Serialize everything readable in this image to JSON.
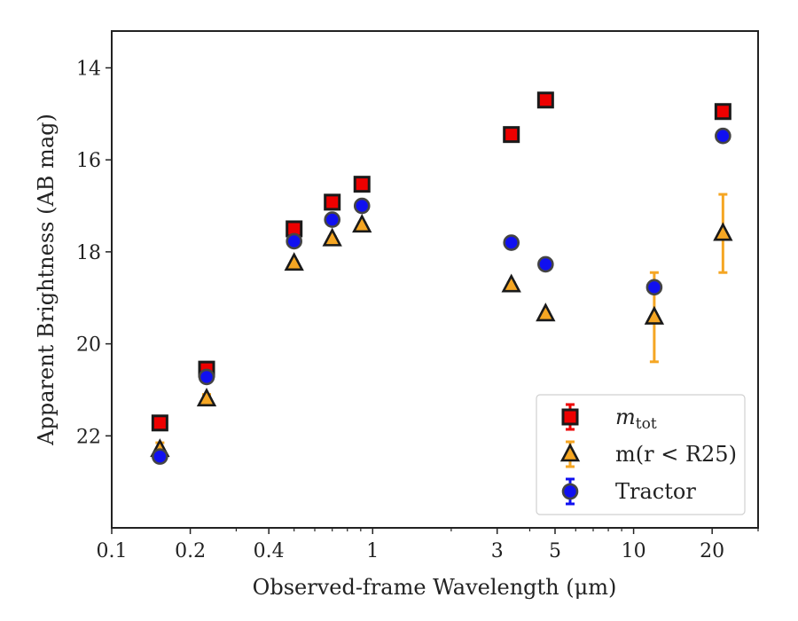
{
  "chart_data": {
    "type": "scatter",
    "xlabel": "Observed-frame Wavelength (μm)",
    "ylabel": "Apparent Brightness (AB mag)",
    "x_scale": "log",
    "xlim": [
      0.1,
      30
    ],
    "ylim": [
      24,
      13.2
    ],
    "y_inverted": true,
    "grid": false,
    "legend_position": "bottom-right",
    "x_ticks": [
      {
        "value": 0.1,
        "label": "0.1"
      },
      {
        "value": 0.2,
        "label": "0.2"
      },
      {
        "value": 0.4,
        "label": "0.4"
      },
      {
        "value": 1,
        "label": "1"
      },
      {
        "value": 3,
        "label": "3"
      },
      {
        "value": 5,
        "label": "5"
      },
      {
        "value": 10,
        "label": "10"
      },
      {
        "value": 20,
        "label": "20"
      }
    ],
    "y_ticks": [
      {
        "value": 14,
        "label": "14"
      },
      {
        "value": 16,
        "label": "16"
      },
      {
        "value": 18,
        "label": "18"
      },
      {
        "value": 20,
        "label": "20"
      },
      {
        "value": 22,
        "label": "22"
      }
    ],
    "series": [
      {
        "name": "m_tot",
        "legend_main": "m",
        "legend_sub": "tot",
        "marker": "square",
        "color": "#ee0000",
        "error_color": "#ee0000",
        "points": [
          {
            "x": 0.153,
            "y": 21.72,
            "err": 0.05
          },
          {
            "x": 0.231,
            "y": 20.55,
            "err": 0.05
          },
          {
            "x": 0.5,
            "y": 17.5,
            "err": 0.05
          },
          {
            "x": 0.7,
            "y": 16.92,
            "err": 0.05
          },
          {
            "x": 0.91,
            "y": 16.53,
            "err": 0.05
          },
          {
            "x": 3.4,
            "y": 15.45,
            "err": 0.05
          },
          {
            "x": 4.6,
            "y": 14.7,
            "err": 0.05
          },
          {
            "x": 22.0,
            "y": 14.95,
            "err": 0.05
          }
        ]
      },
      {
        "name": "m(r < R25)",
        "legend_text": "m(r < R25)",
        "marker": "triangle",
        "color": "#f5a623",
        "error_color": "#f5a623",
        "points": [
          {
            "x": 0.153,
            "y": 22.3,
            "err": 0.15
          },
          {
            "x": 0.231,
            "y": 21.2,
            "err": 0.1
          },
          {
            "x": 0.5,
            "y": 18.25,
            "err": 0.05
          },
          {
            "x": 0.7,
            "y": 17.72,
            "err": 0.05
          },
          {
            "x": 0.91,
            "y": 17.42,
            "err": 0.05
          },
          {
            "x": 3.4,
            "y": 18.72,
            "err": 0.05
          },
          {
            "x": 4.6,
            "y": 19.35,
            "err": 0.05
          },
          {
            "x": 12.0,
            "y": 19.42,
            "err": 0.97
          },
          {
            "x": 22.0,
            "y": 17.6,
            "err": 0.85
          }
        ]
      },
      {
        "name": "Tractor",
        "legend_text": "Tractor",
        "marker": "circle",
        "color": "#1010f0",
        "error_color": "#1010f0",
        "points": [
          {
            "x": 0.153,
            "y": 22.45,
            "err": 0.06
          },
          {
            "x": 0.231,
            "y": 20.72,
            "err": 0.06
          },
          {
            "x": 0.5,
            "y": 17.77,
            "err": 0.05
          },
          {
            "x": 0.7,
            "y": 17.3,
            "err": 0.05
          },
          {
            "x": 0.91,
            "y": 17.0,
            "err": 0.05
          },
          {
            "x": 3.4,
            "y": 17.8,
            "err": 0.05
          },
          {
            "x": 4.6,
            "y": 18.27,
            "err": 0.05
          },
          {
            "x": 12.0,
            "y": 18.77,
            "err": 0.08
          },
          {
            "x": 22.0,
            "y": 15.48,
            "err": 0.05
          }
        ]
      }
    ]
  }
}
